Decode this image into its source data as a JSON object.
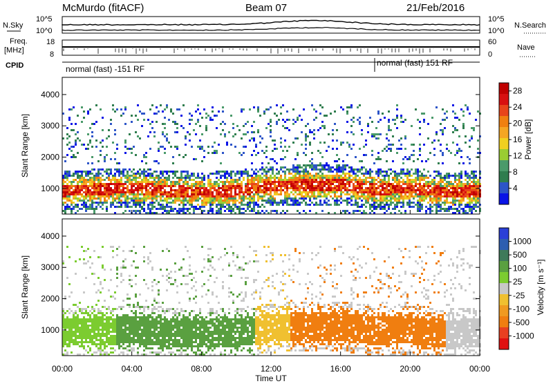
{
  "header": {
    "station": "McMurdo (fitACF)",
    "beam": "Beam 07",
    "date": "21/Feb/2016"
  },
  "top_panels": {
    "noise_left_label": "N.Sky",
    "noise_right_label": "N.Search",
    "noise_left_ticks": [
      "10^5",
      "10^0"
    ],
    "noise_right_ticks": [
      "10^5",
      "10^0"
    ],
    "freq_label_1": "Freq.",
    "freq_label_2": "[MHz]",
    "freq_ticks": [
      "18",
      "8"
    ],
    "nave_label": "Nave",
    "nave_ticks": [
      "60",
      "0"
    ],
    "cpid_label": "CPID",
    "cpid_segments": [
      "normal (fast) -151 RF",
      "normal (fast) 151 RF"
    ]
  },
  "colors": {
    "power": [
      "#0a14e6",
      "#2d55c8",
      "#2f7d4e",
      "#4a9a6a",
      "#9acd32",
      "#f0d020",
      "#f5a623",
      "#f08010",
      "#e8451a",
      "#d81010",
      "#c00000"
    ],
    "velocity": [
      "#2a3fd8",
      "#2e5eb0",
      "#3e7a5a",
      "#5aa040",
      "#7ccc30",
      "#c8c8c8",
      "#f0c030",
      "#f09a20",
      "#f07e10",
      "#e84020",
      "#e01010"
    ]
  },
  "chart_data": [
    {
      "type": "heatmap",
      "xlabel": "",
      "ylabel": "Slant Range [km]",
      "ylim": [
        180,
        4550
      ],
      "xlim": [
        "00:00",
        "24:00"
      ],
      "y_ticks": [
        "1000",
        "2000",
        "3000",
        "4000"
      ],
      "colorbar_label": "Power [dB]",
      "colorbar_ticks": [
        "4",
        "8",
        "12",
        "16",
        "20",
        "24",
        "28"
      ],
      "colorbar_range": [
        0,
        30
      ],
      "echo_band_center_km": [
        {
          "t": 0,
          "km": 950
        },
        {
          "t": 2,
          "km": 1000
        },
        {
          "t": 4,
          "km": 1050
        },
        {
          "t": 6,
          "km": 950
        },
        {
          "t": 8,
          "km": 900
        },
        {
          "t": 10,
          "km": 950
        },
        {
          "t": 12,
          "km": 1100
        },
        {
          "t": 14,
          "km": 1150
        },
        {
          "t": 16,
          "km": 1150
        },
        {
          "t": 18,
          "km": 1000
        },
        {
          "t": 20,
          "km": 1050
        },
        {
          "t": 22,
          "km": 900
        },
        {
          "t": 24,
          "km": 950
        }
      ]
    },
    {
      "type": "heatmap",
      "xlabel": "Time UT",
      "ylabel": "Slant Range [km]",
      "ylim": [
        180,
        4550
      ],
      "xlim": [
        "00:00",
        "24:00"
      ],
      "x_ticks": [
        "00:00",
        "04:00",
        "08:00",
        "12:00",
        "16:00",
        "20:00",
        "00:00"
      ],
      "y_ticks": [
        "1000",
        "2000",
        "3000",
        "4000"
      ],
      "colorbar_label": "Velocity [m s⁻¹]",
      "colorbar_ticks": [
        "1000",
        "500",
        "100",
        "25",
        "-25",
        "-100",
        "-500",
        "-1000"
      ],
      "colorbar_range": [
        -1200,
        1200
      ],
      "dominant_regions": [
        {
          "from": "00:00",
          "to": "03:00",
          "velocity": "≈100 (light green)"
        },
        {
          "from": "03:00",
          "to": "11:00",
          "velocity": "≈300 (dark green)"
        },
        {
          "from": "11:00",
          "to": "13:00",
          "velocity": "≈-25 (yellow)"
        },
        {
          "from": "13:00",
          "to": "22:00",
          "velocity": "≈-300 (orange)"
        }
      ]
    }
  ]
}
